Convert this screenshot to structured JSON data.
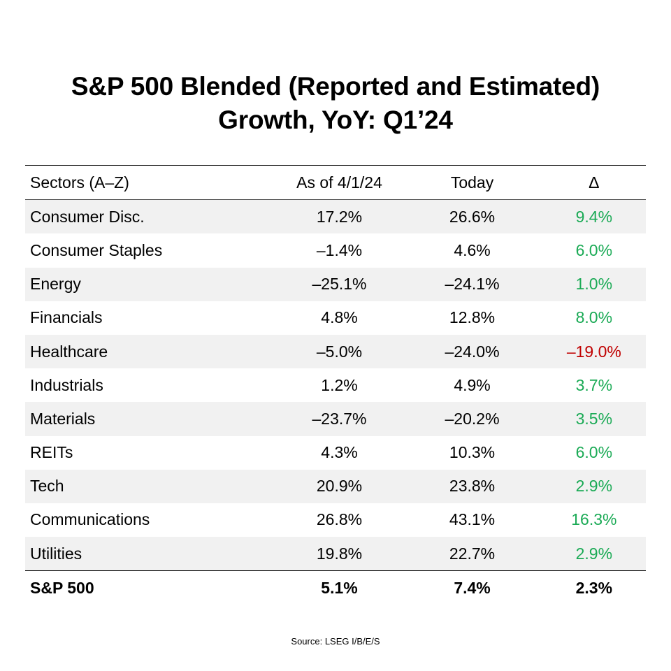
{
  "chart_data": {
    "type": "table",
    "title": "S&P 500 Blended (Reported and Estimated) Growth, YoY: Q1’24",
    "title_lines": [
      "S&P 500 Blended (Reported and Estimated)",
      "Growth, YoY: Q1’24"
    ],
    "columns": [
      "Sectors (A–Z)",
      "As of 4/1/24",
      "Today",
      "Δ"
    ],
    "rows": [
      {
        "sector": "Consumer Disc.",
        "as_of": "17.2%",
        "today": "26.6%",
        "delta": "9.4%",
        "delta_sign": "pos"
      },
      {
        "sector": "Consumer Staples",
        "as_of": "–1.4%",
        "today": "4.6%",
        "delta": "6.0%",
        "delta_sign": "pos"
      },
      {
        "sector": "Energy",
        "as_of": "–25.1%",
        "today": "–24.1%",
        "delta": "1.0%",
        "delta_sign": "pos"
      },
      {
        "sector": "Financials",
        "as_of": "4.8%",
        "today": "12.8%",
        "delta": "8.0%",
        "delta_sign": "pos"
      },
      {
        "sector": "Healthcare",
        "as_of": "–5.0%",
        "today": "–24.0%",
        "delta": "–19.0%",
        "delta_sign": "neg"
      },
      {
        "sector": "Industrials",
        "as_of": "1.2%",
        "today": "4.9%",
        "delta": "3.7%",
        "delta_sign": "pos"
      },
      {
        "sector": "Materials",
        "as_of": "–23.7%",
        "today": "–20.2%",
        "delta": "3.5%",
        "delta_sign": "pos"
      },
      {
        "sector": "REITs",
        "as_of": "4.3%",
        "today": "10.3%",
        "delta": "6.0%",
        "delta_sign": "pos"
      },
      {
        "sector": "Tech",
        "as_of": "20.9%",
        "today": "23.8%",
        "delta": "2.9%",
        "delta_sign": "pos"
      },
      {
        "sector": "Communications",
        "as_of": "26.8%",
        "today": "43.1%",
        "delta": "16.3%",
        "delta_sign": "pos"
      },
      {
        "sector": "Utilities",
        "as_of": "19.8%",
        "today": "22.7%",
        "delta": "2.9%",
        "delta_sign": "pos"
      }
    ],
    "total": {
      "sector": "S&P 500",
      "as_of": "5.1%",
      "today": "7.4%",
      "delta": "2.3%"
    },
    "source": "Source: LSEG I/B/E/S",
    "colors": {
      "positive": "#1aaa55",
      "negative": "#c00000",
      "shade": "#f1f1f1"
    }
  }
}
